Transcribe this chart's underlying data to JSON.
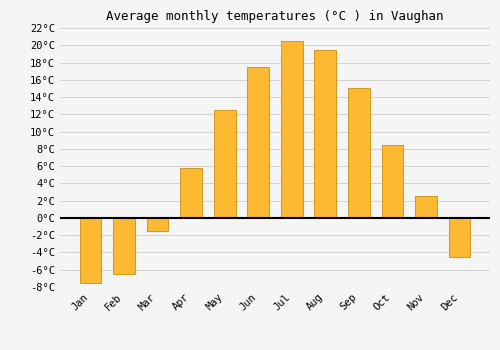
{
  "months": [
    "Jan",
    "Feb",
    "Mar",
    "Apr",
    "May",
    "Jun",
    "Jul",
    "Aug",
    "Sep",
    "Oct",
    "Nov",
    "Dec"
  ],
  "values": [
    -7.5,
    -6.5,
    -1.5,
    5.8,
    12.5,
    17.5,
    20.5,
    19.5,
    15.0,
    8.5,
    2.5,
    -4.5
  ],
  "bar_color_face": "#FDB931",
  "bar_color_edge": "#C8900A",
  "title": "Average monthly temperatures (°C ) in Vaughan",
  "ylim": [
    -8,
    22
  ],
  "yticks": [
    -8,
    -6,
    -4,
    -2,
    0,
    2,
    4,
    6,
    8,
    10,
    12,
    14,
    16,
    18,
    20,
    22
  ],
  "background_color": "#F5F5F5",
  "grid_color": "#CCCCCC",
  "zero_line_color": "#000000",
  "title_fontsize": 9,
  "tick_fontsize": 7.5,
  "font_family": "monospace",
  "bar_width": 0.65
}
